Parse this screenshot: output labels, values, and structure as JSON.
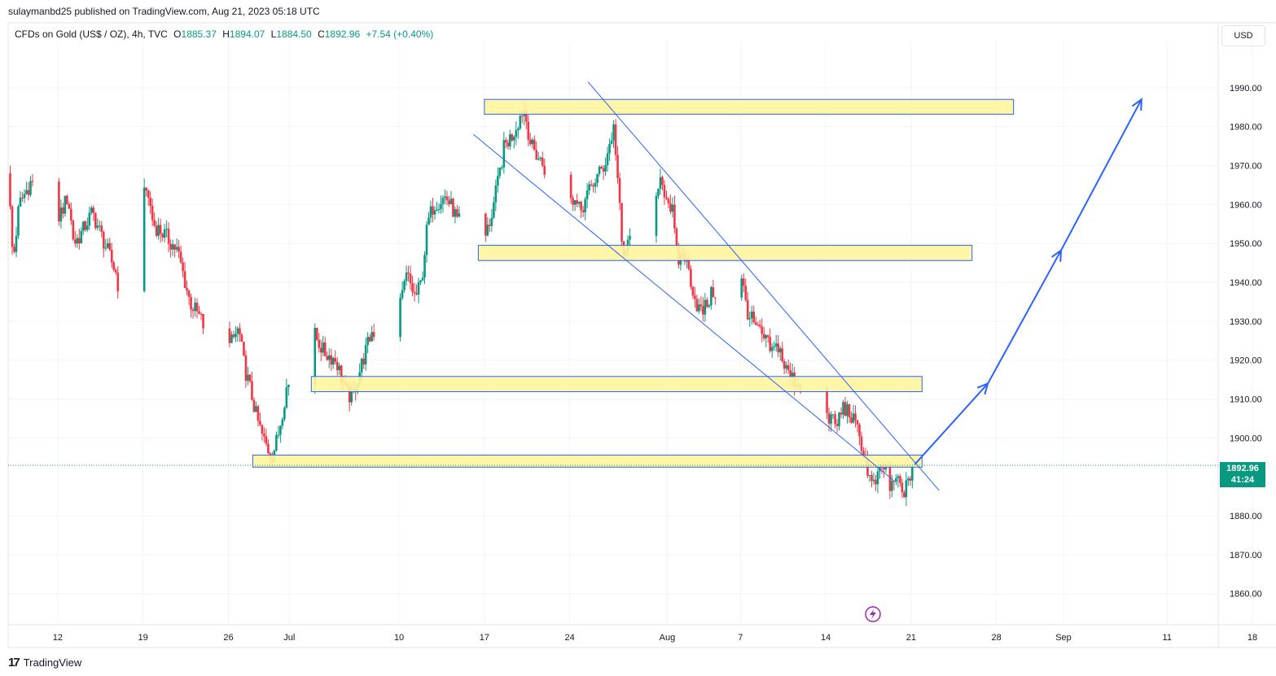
{
  "header": {
    "publisher": "sulaymanbd25 published on TradingView.com, Aug 21, 2023 05:18 UTC",
    "symbol": "CFDs on Gold (US$ / OZ), 4h, TVC",
    "open_label": "O",
    "open": "1885.37",
    "high_label": "H",
    "high": "1894.07",
    "low_label": "L",
    "low": "1884.50",
    "close_label": "C",
    "close": "1892.96",
    "change": "+7.54 (+0.40%)",
    "currency": "USD"
  },
  "price_tag": {
    "price": "1892.96",
    "countdown": "41:24"
  },
  "footer": {
    "brand": "TradingView",
    "logo": "17"
  },
  "colors": {
    "up": "#089981",
    "down": "#f23645",
    "zone_fill": "#fff59d",
    "zone_stroke": "#2962ff",
    "line": "#2962ff"
  },
  "chart_data": {
    "type": "candlestick",
    "timeframe": "4h",
    "ylim": [
      1852,
      2000
    ],
    "y_ticks": [
      1990,
      1980,
      1970,
      1960,
      1950,
      1940,
      1930,
      1920,
      1910,
      1900,
      1880,
      1870,
      1860
    ],
    "x_ticks": [
      {
        "label": "12",
        "day": 12
      },
      {
        "label": "19",
        "day": 19
      },
      {
        "label": "26",
        "day": 26
      },
      {
        "label": "Jul",
        "day": 31
      },
      {
        "label": "10",
        "day": 40
      },
      {
        "label": "17",
        "day": 47
      },
      {
        "label": "24",
        "day": 54
      },
      {
        "label": "Aug",
        "day": 62
      },
      {
        "label": "7",
        "day": 68
      },
      {
        "label": "14",
        "day": 75
      },
      {
        "label": "21",
        "day": 82
      },
      {
        "label": "28",
        "day": 89
      },
      {
        "label": "Sep",
        "day": 94.5
      },
      {
        "label": "11",
        "day": 103
      },
      {
        "label": "18",
        "day": 110
      }
    ],
    "x_range": [
      8.0,
      111.8
    ],
    "path": [
      [
        8.1,
        1968
      ],
      [
        8.5,
        1945
      ],
      [
        9.0,
        1960
      ],
      [
        10,
        1966
      ],
      [
        11,
        1960
      ],
      [
        12,
        1955
      ],
      [
        13,
        1962
      ],
      [
        13.5,
        1950
      ],
      [
        14,
        1952
      ],
      [
        15,
        1958
      ],
      [
        16,
        1950
      ],
      [
        17,
        1942
      ],
      [
        17.5,
        1930
      ],
      [
        18,
        1948
      ],
      [
        18.5,
        1958
      ],
      [
        19,
        1960
      ],
      [
        19.5,
        1964
      ],
      [
        20,
        1955
      ],
      [
        21,
        1952
      ],
      [
        22,
        1948
      ],
      [
        23,
        1935
      ],
      [
        24,
        1930
      ],
      [
        25,
        1918
      ],
      [
        25.5,
        1910
      ],
      [
        26,
        1922
      ],
      [
        27,
        1928
      ],
      [
        27.5,
        1918
      ],
      [
        28,
        1912
      ],
      [
        28.5,
        1905
      ],
      [
        29,
        1900
      ],
      [
        29.7,
        1895
      ],
      [
        30.2,
        1900
      ],
      [
        31,
        1914
      ],
      [
        31.5,
        1912
      ],
      [
        32,
        1925
      ],
      [
        33,
        1928
      ],
      [
        34,
        1922
      ],
      [
        35,
        1920
      ],
      [
        35.8,
        1912
      ],
      [
        36.3,
        1910
      ],
      [
        37,
        1918
      ],
      [
        38,
        1928
      ],
      [
        39,
        1920
      ],
      [
        39.7,
        1922
      ],
      [
        40,
        1930
      ],
      [
        40.8,
        1942
      ],
      [
        41.5,
        1936
      ],
      [
        42,
        1940
      ],
      [
        42.5,
        1955
      ],
      [
        43,
        1960
      ],
      [
        44,
        1962
      ],
      [
        44.7,
        1958
      ],
      [
        45,
        1955
      ],
      [
        46,
        1960
      ],
      [
        46.8,
        1950
      ],
      [
        47.3,
        1952
      ],
      [
        47.8,
        1958
      ],
      [
        48.3,
        1966
      ],
      [
        48.8,
        1975
      ],
      [
        49.5,
        1978
      ],
      [
        50,
        1982
      ],
      [
        50.4,
        1985
      ],
      [
        51,
        1975
      ],
      [
        52,
        1970
      ],
      [
        53,
        1962
      ],
      [
        54,
        1965
      ],
      [
        55,
        1958
      ],
      [
        56,
        1965
      ],
      [
        57,
        1970
      ],
      [
        57.8,
        1980
      ],
      [
        58.2,
        1962
      ],
      [
        58.5,
        1946
      ],
      [
        59,
        1950
      ],
      [
        59.7,
        1958
      ],
      [
        60.5,
        1962
      ],
      [
        61.2,
        1958
      ],
      [
        61.5,
        1968
      ],
      [
        62,
        1963
      ],
      [
        62.6,
        1958
      ],
      [
        63,
        1945
      ],
      [
        63.5,
        1948
      ],
      [
        64,
        1942
      ],
      [
        64.5,
        1935
      ],
      [
        65,
        1932
      ],
      [
        66,
        1938
      ],
      [
        67,
        1935
      ],
      [
        67.7,
        1942
      ],
      [
        68.3,
        1940
      ],
      [
        68.8,
        1932
      ],
      [
        69.5,
        1928
      ],
      [
        70.2,
        1925
      ],
      [
        70.8,
        1922
      ],
      [
        71.3,
        1924
      ],
      [
        71.8,
        1918
      ],
      [
        72.5,
        1915
      ],
      [
        73,
        1914
      ],
      [
        74,
        1916
      ],
      [
        74.8,
        1912
      ],
      [
        75.5,
        1905
      ],
      [
        76,
        1903
      ],
      [
        76.6,
        1908
      ],
      [
        77.2,
        1906
      ],
      [
        78,
        1900
      ],
      [
        78.5,
        1893
      ],
      [
        79,
        1887
      ],
      [
        79.6,
        1891
      ],
      [
        80,
        1893
      ],
      [
        80.5,
        1886
      ],
      [
        81,
        1890
      ],
      [
        81.4,
        1886
      ],
      [
        82,
        1888
      ],
      [
        82.2,
        1893
      ]
    ],
    "zones": [
      {
        "from_day": 47.0,
        "to_day": 90.4,
        "bottom": 1983.2,
        "top": 1987.0
      },
      {
        "from_day": 46.5,
        "to_day": 87.0,
        "bottom": 1945.6,
        "top": 1949.5
      },
      {
        "from_day": 32.8,
        "to_day": 82.9,
        "bottom": 1911.9,
        "top": 1915.8
      },
      {
        "from_day": 28.0,
        "to_day": 82.9,
        "bottom": 1892.5,
        "top": 1895.6
      }
    ],
    "trendlines": [
      {
        "x1": 46.1,
        "y1": 1978.0,
        "x2": 80.6,
        "y2": 1889.0
      },
      {
        "x1": 55.5,
        "y1": 1991.5,
        "x2": 84.3,
        "y2": 1886.5
      }
    ],
    "projection": [
      [
        82.3,
        1893.2
      ],
      [
        88.3,
        1914.0
      ],
      [
        94.3,
        1948.2
      ],
      [
        100.9,
        1987.0
      ]
    ],
    "last_price": 1892.96
  }
}
